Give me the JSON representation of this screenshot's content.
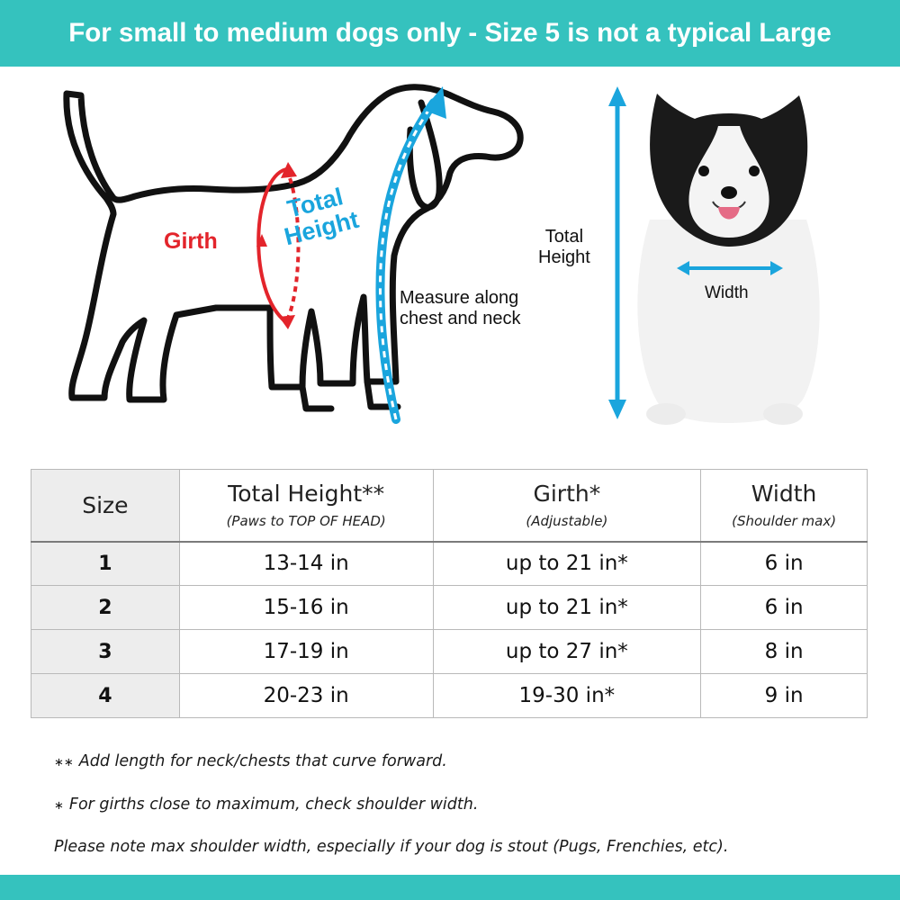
{
  "banner": {
    "text": "For small to medium dogs only - Size 5 is not a typical Large"
  },
  "diagram": {
    "girth_label": "Girth",
    "total_height_label_line1": "Total",
    "total_height_label_line2": "Height",
    "measure_line1": "Measure along",
    "measure_line2": "chest and neck",
    "photo_total_height_line1": "Total",
    "photo_total_height_line2": "Height",
    "photo_width_label": "Width",
    "colors": {
      "girth": "#e3242b",
      "height": "#1aa5dd",
      "outline": "#111111"
    }
  },
  "table": {
    "headers": [
      {
        "title": "Size",
        "sub": ""
      },
      {
        "title": "Total Height**",
        "sub": "(Paws to TOP OF HEAD)"
      },
      {
        "title": "Girth*",
        "sub": "(Adjustable)"
      },
      {
        "title": "Width",
        "sub": "(Shoulder max)"
      }
    ],
    "rows": [
      {
        "size": "1",
        "height": "13-14 in",
        "girth": "up to 21 in*",
        "width": "6 in"
      },
      {
        "size": "2",
        "height": "15-16 in",
        "girth": "up to 21 in*",
        "width": "6 in"
      },
      {
        "size": "3",
        "height": "17-19 in",
        "girth": "up to 27 in*",
        "width": "8 in"
      },
      {
        "size": "4",
        "height": "20-23 in",
        "girth": "19-30 in*",
        "width": "9 in"
      }
    ]
  },
  "notes": {
    "n1_marker": "∗∗",
    "n1_text": "Add length for neck/chests that curve forward.",
    "n2_marker": "∗",
    "n2_text": "For girths close to maximum, check shoulder width.",
    "n3_text": "Please note max shoulder width, especially if your dog is stout (Pugs, Frenchies, etc)."
  },
  "theme": {
    "accent": "#35c2be"
  }
}
